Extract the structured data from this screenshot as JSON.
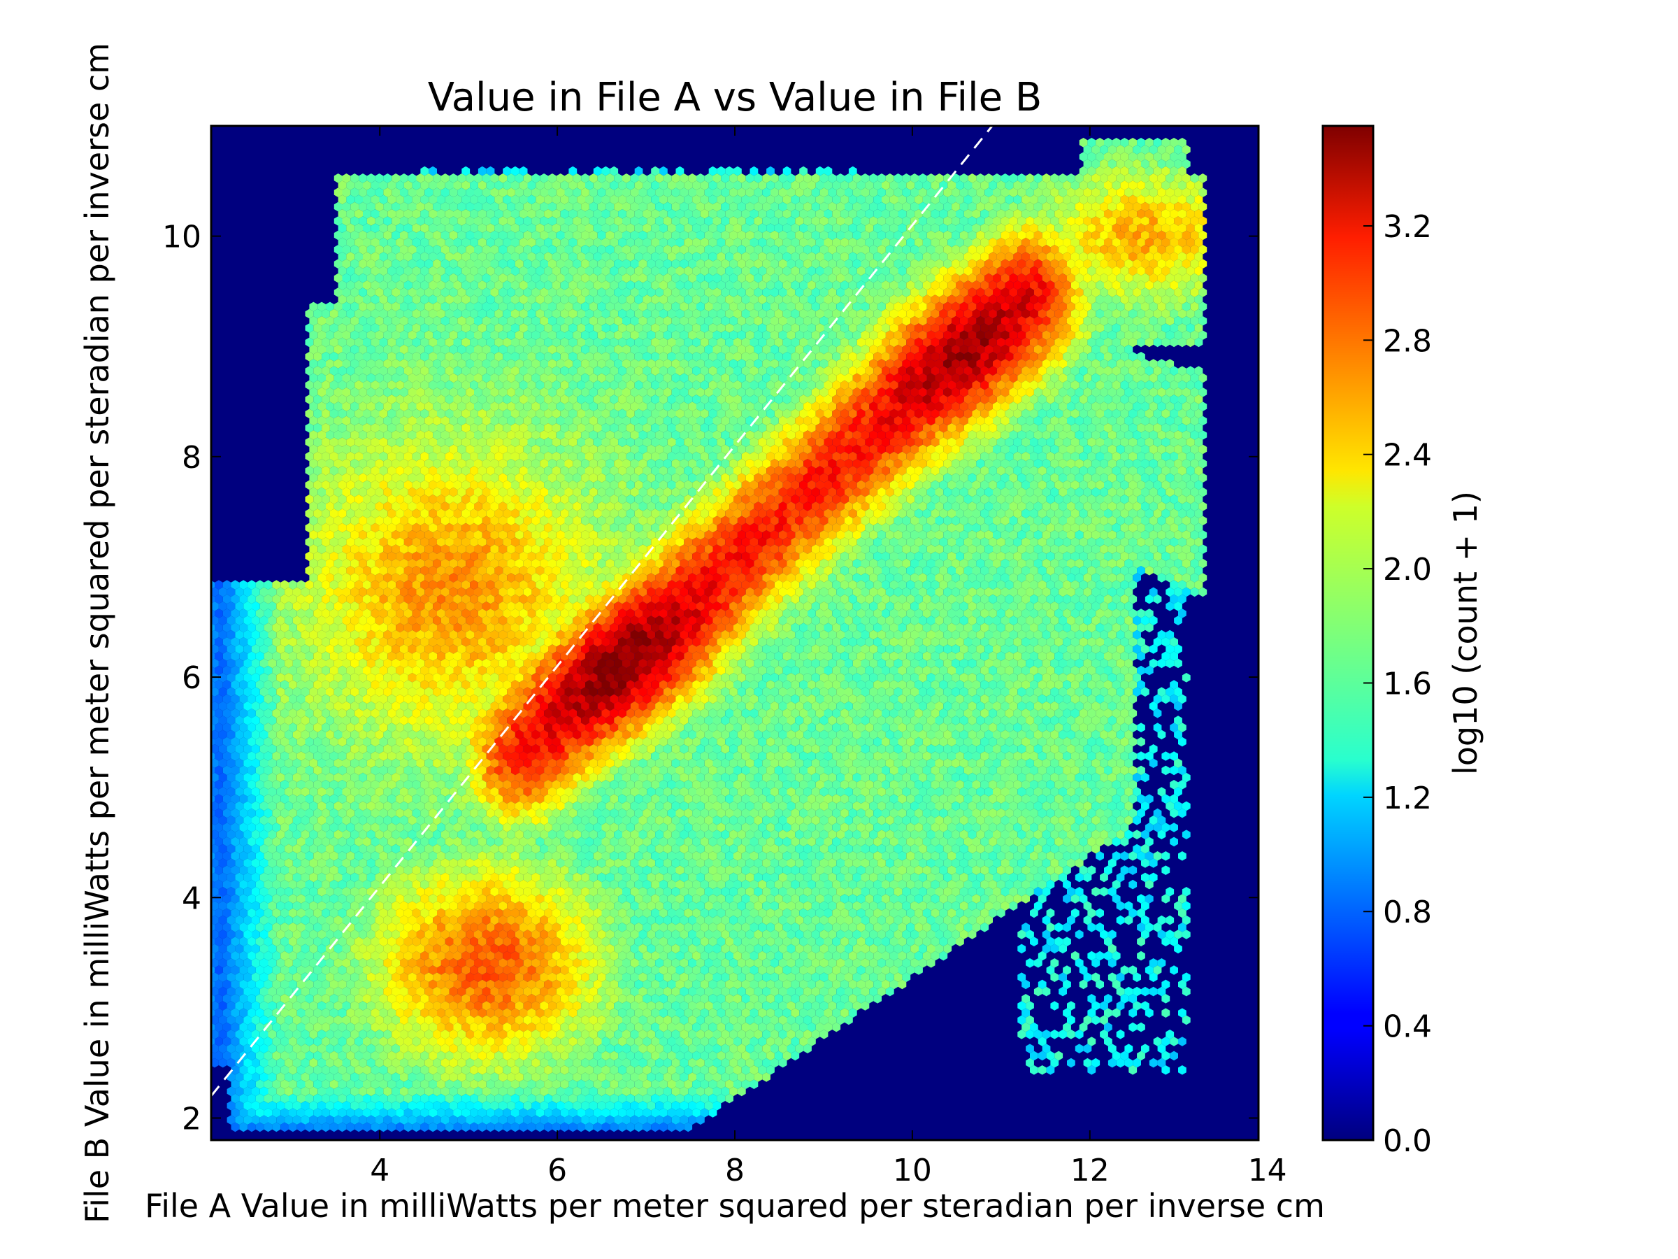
{
  "chart_data": {
    "type": "heatmap",
    "subtype": "hexbin",
    "title": "Value in File A vs Value in File B",
    "xlabel": "File A Value in milliWatts per meter squared per steradian per inverse cm",
    "ylabel": "File B Value in milliWatts per meter squared per steradian per inverse cm",
    "xlim": [
      2.1,
      13.9
    ],
    "ylim": [
      1.8,
      11.0
    ],
    "x_ticks": [
      4,
      6,
      8,
      10,
      12,
      14
    ],
    "x_tick_labels": [
      "4",
      "6",
      "8",
      "10",
      "12",
      "14"
    ],
    "y_ticks": [
      2,
      4,
      6,
      8,
      10
    ],
    "y_tick_labels": [
      "2",
      "4",
      "6",
      "8",
      "10"
    ],
    "colormap": "jet",
    "background_color": "#00007f",
    "colorbar": {
      "label": "log10 (count + 1)",
      "range": [
        0.0,
        3.55
      ],
      "ticks": [
        0.0,
        0.4,
        0.8,
        1.2,
        1.6,
        2.0,
        2.4,
        2.8,
        3.2
      ],
      "tick_labels": [
        "0.0",
        "0.4",
        "0.8",
        "1.2",
        "1.6",
        "2.0",
        "2.4",
        "2.8",
        "3.2"
      ]
    },
    "reference_line": {
      "style": "dashed",
      "color": "#ffffff",
      "slope": 1,
      "intercept": 0.1
    },
    "density_regions": [
      {
        "region": "main diagonal ridge",
        "x": [
          5.5,
          11.5
        ],
        "y": [
          5.2,
          9.8
        ],
        "peak_value": 3.5
      },
      {
        "region": "peak near",
        "x": 6.8,
        "y": 6.1,
        "value": 3.5
      },
      {
        "region": "peak near",
        "x": 10.8,
        "y": 8.9,
        "value": 3.4
      },
      {
        "region": "lower-left lobe",
        "x": [
          4.2,
          6.2
        ],
        "y": [
          2.6,
          4.2
        ],
        "peak_value": 2.9
      },
      {
        "region": "upper-right tail",
        "x": [
          11.5,
          13.5
        ],
        "y": [
          9.5,
          10.5
        ],
        "peak_value": 2.6
      }
    ]
  }
}
